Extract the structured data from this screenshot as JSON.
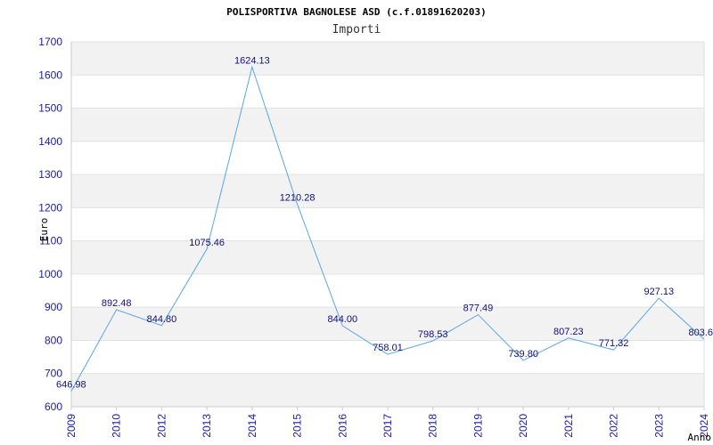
{
  "chart_data": {
    "type": "line",
    "title": "POLISPORTIVA BAGNOLESE ASD (c.f.01891620203)",
    "subtitle": "Importi",
    "xlabel": "Anno",
    "ylabel": "Euro",
    "ylim": [
      600,
      1700
    ],
    "yticks": [
      600,
      700,
      800,
      900,
      1000,
      1100,
      1200,
      1300,
      1400,
      1500,
      1600,
      1700
    ],
    "categories": [
      "2009",
      "2010",
      "2012",
      "2013",
      "2014",
      "2015",
      "2016",
      "2017",
      "2018",
      "2019",
      "2020",
      "2021",
      "2022",
      "2023",
      "2024"
    ],
    "values": [
      646.98,
      892.48,
      844.8,
      1075.46,
      1624.13,
      1210.28,
      844.0,
      758.01,
      798.53,
      877.49,
      739.8,
      807.23,
      771.32,
      927.13,
      803.6
    ],
    "value_labels": [
      "646.98",
      "892.48",
      "844.80",
      "1075.46",
      "1624.13",
      "1210.28",
      "844.00",
      "758.01",
      "798.53",
      "877.49",
      "739.80",
      "807.23",
      "771.32",
      "927.13",
      "803.6"
    ],
    "grid": "alternating horizontal bands",
    "colors": {
      "line": "#5aa6e6",
      "band": "#f2f2f2",
      "tick": "#1a1aa6",
      "label": "#0f0f7a"
    }
  }
}
